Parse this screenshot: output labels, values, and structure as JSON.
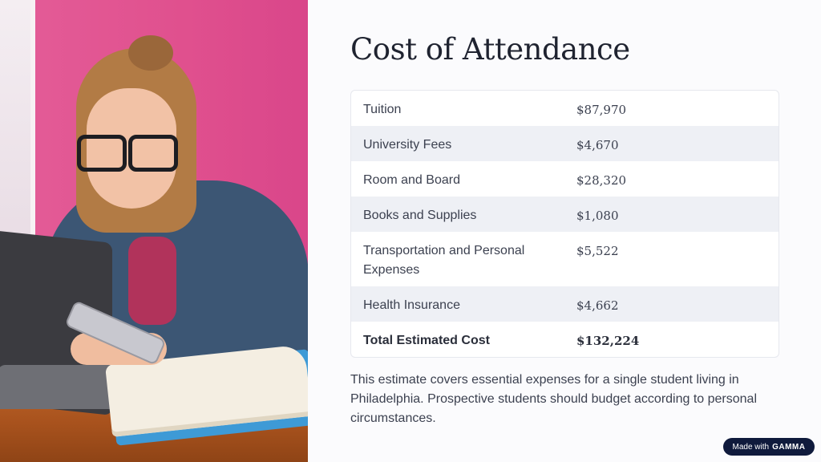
{
  "title": "Cost of Attendance",
  "table": {
    "rows": [
      {
        "item": "Tuition",
        "cost": "$87,970"
      },
      {
        "item": "University Fees",
        "cost": "$4,670"
      },
      {
        "item": "Room and Board",
        "cost": "$28,320"
      },
      {
        "item": "Books and Supplies",
        "cost": "$1,080"
      },
      {
        "item": "Transportation and Personal Expenses",
        "cost": "$5,522"
      },
      {
        "item": "Health Insurance",
        "cost": "$4,662"
      },
      {
        "item": "Total Estimated Cost",
        "cost": "$132,224"
      }
    ]
  },
  "note": "This estimate covers essential expenses for a single student living in Philadelphia. Prospective students should budget according to personal circumstances.",
  "badge": {
    "prefix": "Made with",
    "brand": "GAMMA"
  },
  "colors": {
    "accent_pink": "#e0508e",
    "badge_navy": "#0f1a3c"
  }
}
